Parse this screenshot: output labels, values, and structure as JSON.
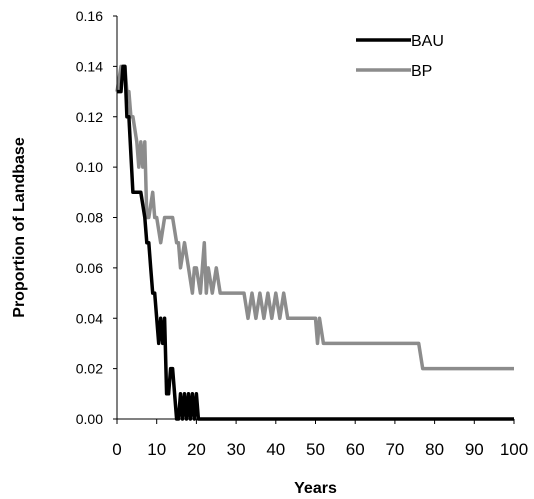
{
  "chart_data": {
    "type": "line",
    "title": "",
    "xlabel": "Years",
    "ylabel": "Proportion of Landbase",
    "xlim": [
      0,
      100
    ],
    "ylim": [
      0,
      0.16
    ],
    "xticks": [
      0,
      10,
      20,
      30,
      40,
      50,
      60,
      70,
      80,
      90,
      100
    ],
    "yticks": [
      0.0,
      0.02,
      0.04,
      0.06,
      0.08,
      0.1,
      0.12,
      0.14,
      0.16
    ],
    "ytick_labels": [
      "0.00",
      "0.02",
      "0.04",
      "0.06",
      "0.08",
      "0.10",
      "0.12",
      "0.14",
      "0.16"
    ],
    "xtick_labels": [
      "0",
      "10",
      "20",
      "30",
      "40",
      "50",
      "60",
      "70",
      "80",
      "90",
      "100"
    ],
    "legend": "top-right",
    "series": [
      {
        "name": "BAU",
        "color": "#000000",
        "x": [
          0,
          1,
          1.5,
          2,
          2.5,
          3,
          4,
          5,
          6,
          7,
          7.5,
          8,
          8.5,
          9,
          9.5,
          10,
          10.5,
          11,
          11.5,
          12,
          12.5,
          13,
          13.5,
          14,
          14.5,
          15,
          15.5,
          16,
          16.5,
          17,
          17.5,
          18,
          18.5,
          19,
          19.5,
          20,
          20.5,
          21,
          21.5,
          22,
          23,
          25,
          30,
          40,
          50,
          60,
          70,
          80,
          90,
          100
        ],
        "y": [
          0.13,
          0.13,
          0.14,
          0.14,
          0.12,
          0.12,
          0.09,
          0.09,
          0.09,
          0.08,
          0.07,
          0.07,
          0.06,
          0.05,
          0.05,
          0.04,
          0.03,
          0.04,
          0.03,
          0.04,
          0.01,
          0.01,
          0.02,
          0.02,
          0.01,
          0.0,
          0.0,
          0.01,
          0.0,
          0.01,
          0.0,
          0.01,
          0.0,
          0.01,
          0.0,
          0.01,
          0.0,
          0.0,
          0.0,
          0.0,
          0.0,
          0.0,
          0.0,
          0.0,
          0.0,
          0.0,
          0.0,
          0.0,
          0.0,
          0.0
        ]
      },
      {
        "name": "BP",
        "color": "#8c8c8c",
        "x": [
          0,
          1,
          1.5,
          2,
          2.5,
          3,
          3.5,
          4,
          5,
          5.5,
          6,
          6.5,
          7,
          7.5,
          8,
          9,
          9.5,
          10,
          11,
          12,
          13,
          14,
          15,
          15.5,
          16,
          17,
          18,
          19,
          19.5,
          20,
          21,
          22,
          22.5,
          23,
          24,
          25,
          26,
          30,
          32,
          33,
          34,
          35,
          36,
          37,
          38,
          39,
          40,
          41,
          42,
          43,
          45,
          50,
          50.5,
          51,
          52,
          53,
          55,
          60,
          70,
          76,
          77,
          78,
          80,
          90,
          100
        ],
        "y": [
          0.13,
          0.14,
          0.14,
          0.14,
          0.13,
          0.13,
          0.12,
          0.12,
          0.11,
          0.1,
          0.11,
          0.1,
          0.11,
          0.08,
          0.08,
          0.09,
          0.08,
          0.08,
          0.07,
          0.08,
          0.08,
          0.08,
          0.07,
          0.07,
          0.06,
          0.07,
          0.06,
          0.05,
          0.06,
          0.06,
          0.05,
          0.07,
          0.05,
          0.06,
          0.05,
          0.06,
          0.05,
          0.05,
          0.05,
          0.04,
          0.05,
          0.04,
          0.05,
          0.04,
          0.05,
          0.04,
          0.05,
          0.04,
          0.05,
          0.04,
          0.04,
          0.04,
          0.03,
          0.04,
          0.03,
          0.03,
          0.03,
          0.03,
          0.03,
          0.03,
          0.02,
          0.02,
          0.02,
          0.02,
          0.02
        ]
      }
    ]
  }
}
